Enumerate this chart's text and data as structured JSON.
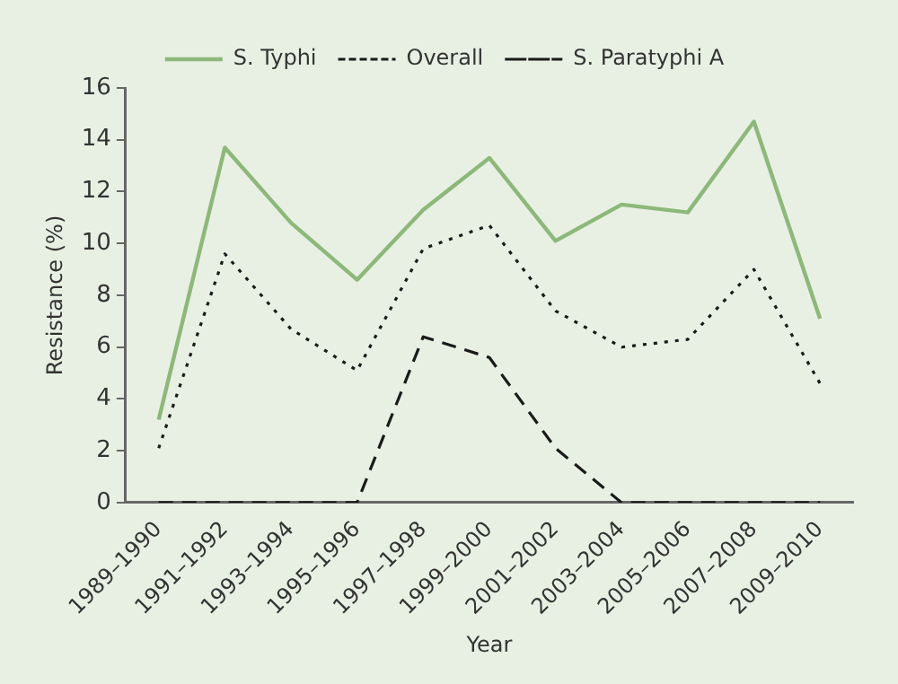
{
  "chart_data": {
    "type": "line",
    "xlabel": "Year",
    "ylabel": "Resistance (%)",
    "categories": [
      "1989–1990",
      "1991–1992",
      "1993–1994",
      "1995–1996",
      "1997–1998",
      "1999–2000",
      "2001–2002",
      "2003–2004",
      "2005–2006",
      "2007–2008",
      "2009–2010"
    ],
    "series": [
      {
        "name": "S. Typhi",
        "color": "#8db87a",
        "line_style": "solid",
        "values": [
          3.2,
          13.7,
          10.8,
          8.6,
          11.3,
          13.3,
          10.1,
          11.5,
          11.2,
          14.7,
          7.1
        ]
      },
      {
        "name": "Overall",
        "color": "#1a1a1a",
        "line_style": "dotted",
        "values": [
          2.1,
          9.6,
          6.7,
          5.1,
          9.8,
          10.7,
          7.4,
          6.0,
          6.3,
          9.0,
          4.6
        ]
      },
      {
        "name": "S. Paratyphi A",
        "color": "#1a1a1a",
        "line_style": "dashed",
        "values": [
          0,
          0,
          0,
          0,
          6.4,
          5.6,
          2.1,
          0,
          0,
          0,
          0
        ]
      }
    ],
    "ylim": [
      0,
      16
    ],
    "yticks": [
      0,
      2,
      4,
      6,
      8,
      10,
      12,
      14,
      16
    ],
    "grid": false,
    "legend": "top",
    "marker": "none"
  }
}
